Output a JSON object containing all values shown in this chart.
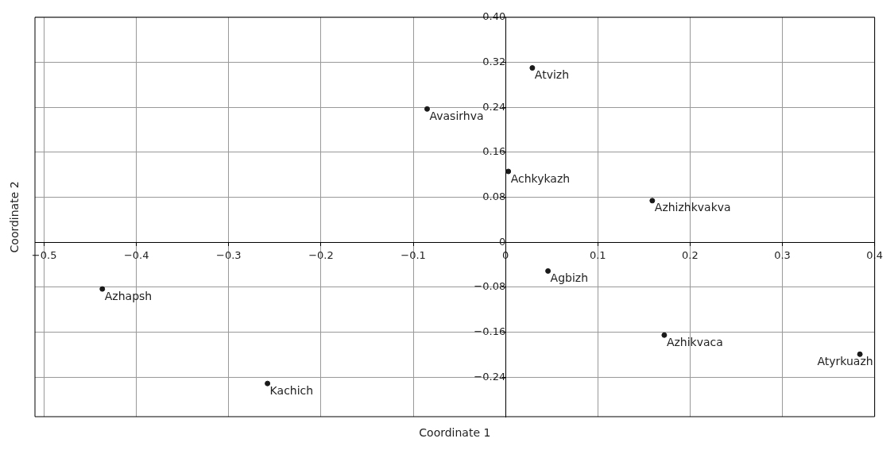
{
  "chart_data": {
    "type": "scatter",
    "xlabel": "Coordinate 1",
    "ylabel": "Coordinate 2",
    "xlim": [
      -0.51,
      0.4
    ],
    "ylim": [
      -0.31,
      0.4
    ],
    "xticks": [
      {
        "value": -0.5,
        "label": "−0.5"
      },
      {
        "value": -0.4,
        "label": "−0.4"
      },
      {
        "value": -0.3,
        "label": "−0.3"
      },
      {
        "value": -0.2,
        "label": "−0.2"
      },
      {
        "value": -0.1,
        "label": "−0.1"
      },
      0,
      0.1,
      0.2,
      0.3,
      0.4
    ],
    "yticks": [
      {
        "value": -0.24,
        "label": "−0.24"
      },
      {
        "value": -0.16,
        "label": "−0.16"
      },
      {
        "value": -0.08,
        "label": "−0.08"
      },
      0,
      0.08,
      0.16,
      0.24,
      0.32,
      {
        "value": 0.4,
        "label": "0.40"
      }
    ],
    "grid": true,
    "marker": "circle",
    "legend": false,
    "series": [
      {
        "name": "Atvizh",
        "color": "#1a1a1a",
        "x": [
          0.029
        ],
        "values": [
          0.31
        ]
      },
      {
        "name": "Avasirhva",
        "color": "#1a1a1a",
        "x": [
          -0.085
        ],
        "values": [
          0.237
        ]
      },
      {
        "name": "Achkykazh",
        "color": "#1a1a1a",
        "x": [
          0.003
        ],
        "values": [
          0.126
        ]
      },
      {
        "name": "Azhizhkvakva",
        "color": "#1a1a1a",
        "x": [
          0.159
        ],
        "values": [
          0.074
        ]
      },
      {
        "name": "Agbizh",
        "color": "#1a1a1a",
        "x": [
          0.046
        ],
        "values": [
          -0.051
        ]
      },
      {
        "name": "Azhapsh",
        "color": "#1a1a1a",
        "x": [
          -0.437
        ],
        "values": [
          -0.083
        ]
      },
      {
        "name": "Azhikvaca",
        "color": "#1a1a1a",
        "x": [
          0.172
        ],
        "values": [
          -0.165
        ]
      },
      {
        "name": "Atyrkuazh",
        "color": "#1a1a1a",
        "x": [
          0.384
        ],
        "values": [
          -0.199
        ]
      },
      {
        "name": "Kachich",
        "color": "#1a1a1a",
        "x": [
          -0.258
        ],
        "values": [
          -0.251
        ]
      }
    ]
  }
}
